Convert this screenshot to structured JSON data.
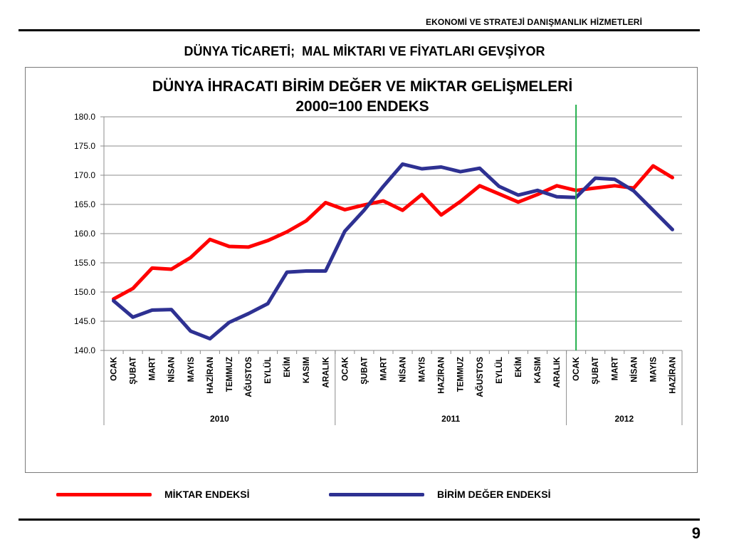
{
  "header": {
    "company": "EKONOMİ VE STRATEJİ DANIŞMANLIK HİZMETLERİ",
    "slide_title": "DÜNYA TİCARETİ;  MAL MİKTARI VE FİYATLARI GEVŞİYOR"
  },
  "page_number": "9",
  "chart_data": {
    "type": "line",
    "title": "DÜNYA İHRACATI BİRİM DEĞER VE MİKTAR GELİŞMELERİ",
    "subtitle": "2000=100 ENDEKS",
    "ylim": [
      140,
      180
    ],
    "yticks": [
      "140.0",
      "145.0",
      "150.0",
      "155.0",
      "160.0",
      "165.0",
      "170.0",
      "175.0",
      "180.0"
    ],
    "grid": true,
    "legend_position": "bottom",
    "categories": [
      "OCAK",
      "ŞUBAT",
      "MART",
      "NİSAN",
      "MAYIS",
      "HAZİRAN",
      "TEMMUZ",
      "AĞUSTOS",
      "EYLÜL",
      "EKİM",
      "KASIM",
      "ARALIK",
      "OCAK",
      "ŞUBAT",
      "MART",
      "NİSAN",
      "MAYIS",
      "HAZİRAN",
      "TEMMUZ",
      "AĞUSTOS",
      "EYLÜL",
      "EKİM",
      "KASIM",
      "ARALIK",
      "OCAK",
      "ŞUBAT",
      "MART",
      "NİSAN",
      "MAYIS",
      "HAZİRAN"
    ],
    "groups": [
      {
        "label": "2010",
        "start": 0,
        "count": 12
      },
      {
        "label": "2011",
        "start": 12,
        "count": 12
      },
      {
        "label": "2012",
        "start": 24,
        "count": 6
      }
    ],
    "marker_line_index": 24,
    "marker_line_color": "#22b04b",
    "series": [
      {
        "name": "MİKTAR ENDEKSİ",
        "color": "#ff0000",
        "values": [
          148.8,
          150.6,
          154.1,
          153.9,
          155.9,
          159.0,
          157.8,
          157.7,
          158.8,
          160.3,
          162.2,
          165.3,
          164.1,
          164.9,
          165.6,
          164.0,
          166.7,
          163.2,
          165.5,
          168.2,
          166.8,
          165.4,
          166.7,
          168.2,
          167.4,
          167.8,
          168.2,
          167.8,
          171.6,
          169.6
        ]
      },
      {
        "name": "BİRİM DEĞER ENDEKSİ",
        "color": "#2e3192",
        "values": [
          148.5,
          145.7,
          146.9,
          147.0,
          143.3,
          142.0,
          144.8,
          146.3,
          148.0,
          153.4,
          153.6,
          153.6,
          160.4,
          164.0,
          168.1,
          171.9,
          171.1,
          171.4,
          170.6,
          171.2,
          168.1,
          166.6,
          167.4,
          166.3,
          166.2,
          169.5,
          169.3,
          167.3,
          164.0,
          160.7
        ]
      }
    ]
  }
}
